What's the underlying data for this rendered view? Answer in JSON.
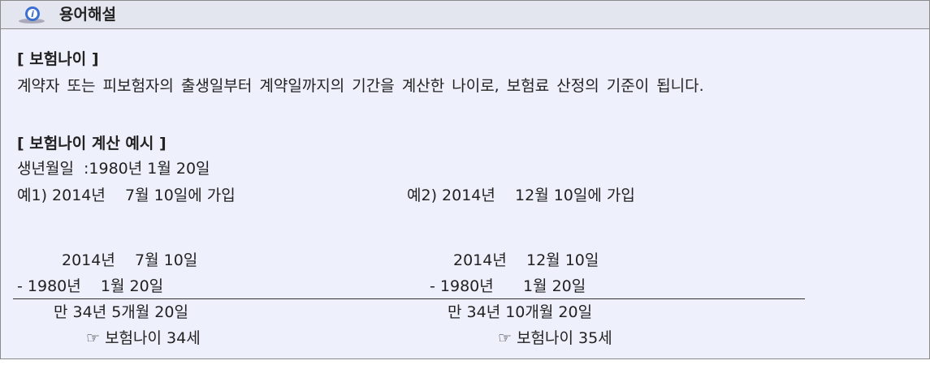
{
  "header": {
    "title": "용어해설"
  },
  "definition": {
    "heading": "[ 보험나이 ]",
    "body": "계약자 또는 피보험자의 출생일부터 계약일까지의 기간을 계산한 나이로, 보험료 산정의 기준이 됩니다."
  },
  "example": {
    "heading": "[ 보험나이 계산 예시 ]",
    "birth": "생년월일  :1980년 1월 20일",
    "cases": [
      {
        "label": "예1) 2014년    7월 10일에 가입",
        "join": "2014년    7월 10일",
        "birth": "- 1980년    1월 20일",
        "diff": "만 34년 5개월 20일",
        "result": "☞ 보험나이 34세"
      },
      {
        "label": "예2) 2014년    12월 10일에 가입",
        "join": "2014년    12월 10일",
        "birth": "- 1980년      1월 20일",
        "diff": "만 34년 10개월 20일",
        "result": "☞ 보험나이 35세"
      }
    ]
  }
}
